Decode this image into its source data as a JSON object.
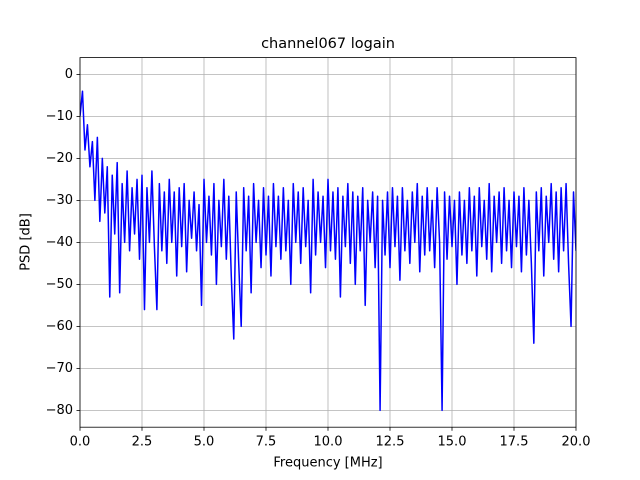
{
  "chart_data": {
    "type": "line",
    "title": "channel067 logain",
    "x_label": "Frequency [MHz]",
    "y_label": "PSD [dB]",
    "xlim": [
      0,
      20
    ],
    "ylim": [
      -84,
      4
    ],
    "grid": true,
    "xticks": [
      {
        "value": 0,
        "label": "0.0"
      },
      {
        "value": 2.5,
        "label": "2.5"
      },
      {
        "value": 5,
        "label": "5.0"
      },
      {
        "value": 7.5,
        "label": "7.5"
      },
      {
        "value": 10,
        "label": "10.0"
      },
      {
        "value": 12.5,
        "label": "12.5"
      },
      {
        "value": 15,
        "label": "15.0"
      },
      {
        "value": 17.5,
        "label": "17.5"
      },
      {
        "value": 20,
        "label": "20.0"
      }
    ],
    "yticks": [
      0,
      {
        "value": -10,
        "label": "−10"
      },
      {
        "value": -20,
        "label": "−20"
      },
      {
        "value": -30,
        "label": "−30"
      },
      {
        "value": -40,
        "label": "−40"
      },
      {
        "value": -50,
        "label": "−50"
      },
      {
        "value": -60,
        "label": "−60"
      },
      {
        "value": -70,
        "label": "−70"
      },
      {
        "value": -80,
        "label": "−80"
      }
    ],
    "x": [
      0,
      0.1,
      0.2,
      0.3,
      0.4,
      0.5,
      0.6,
      0.7,
      0.8,
      0.9,
      1,
      1.1,
      1.2,
      1.3,
      1.4,
      1.5,
      1.6,
      1.7,
      1.8,
      1.9,
      2,
      2.1,
      2.2,
      2.3,
      2.4,
      2.5,
      2.6,
      2.7,
      2.8,
      2.9,
      3,
      3.1,
      3.2,
      3.3,
      3.4,
      3.5,
      3.6,
      3.7,
      3.8,
      3.9,
      4,
      4.1,
      4.2,
      4.3,
      4.4,
      4.5,
      4.6,
      4.7,
      4.8,
      4.9,
      5,
      5.1,
      5.2,
      5.3,
      5.4,
      5.5,
      5.6,
      5.7,
      5.8,
      5.9,
      6,
      6.1,
      6.2,
      6.3,
      6.4,
      6.5,
      6.6,
      6.7,
      6.8,
      6.9,
      7,
      7.1,
      7.2,
      7.3,
      7.4,
      7.5,
      7.6,
      7.7,
      7.8,
      7.9,
      8,
      8.1,
      8.2,
      8.3,
      8.4,
      8.5,
      8.6,
      8.7,
      8.8,
      8.9,
      9,
      9.1,
      9.2,
      9.3,
      9.4,
      9.5,
      9.6,
      9.7,
      9.8,
      9.9,
      10,
      10.1,
      10.2,
      10.3,
      10.4,
      10.5,
      10.6,
      10.7,
      10.8,
      10.9,
      11,
      11.1,
      11.2,
      11.3,
      11.4,
      11.5,
      11.6,
      11.7,
      11.8,
      11.9,
      12,
      12.1,
      12.2,
      12.3,
      12.4,
      12.5,
      12.6,
      12.7,
      12.8,
      12.9,
      13,
      13.1,
      13.2,
      13.3,
      13.4,
      13.5,
      13.6,
      13.7,
      13.8,
      13.9,
      14,
      14.1,
      14.2,
      14.3,
      14.4,
      14.5,
      14.6,
      14.7,
      14.8,
      14.9,
      15,
      15.1,
      15.2,
      15.3,
      15.4,
      15.5,
      15.6,
      15.7,
      15.8,
      15.9,
      16,
      16.1,
      16.2,
      16.3,
      16.4,
      16.5,
      16.6,
      16.7,
      16.8,
      16.9,
      17,
      17.1,
      17.2,
      17.3,
      17.4,
      17.5,
      17.6,
      17.7,
      17.8,
      17.9,
      18,
      18.1,
      18.2,
      18.3,
      18.4,
      18.5,
      18.6,
      18.7,
      18.8,
      18.9,
      19,
      19.1,
      19.2,
      19.3,
      19.4,
      19.5,
      19.6,
      19.7,
      19.8,
      19.9,
      20
    ],
    "series": [
      {
        "color": "#0000ff",
        "values": [
          -10,
          -4,
          -18,
          -12,
          -22,
          -16,
          -30,
          -15,
          -35,
          -20,
          -33,
          -22,
          -53,
          -24,
          -38,
          -21,
          -52,
          -26,
          -40,
          -23,
          -42,
          -27,
          -38,
          -25,
          -44,
          -24,
          -56,
          -27,
          -40,
          -23,
          -41,
          -56,
          -26,
          -42,
          -28,
          -45,
          -25,
          -40,
          -28,
          -48,
          -27,
          -41,
          -26,
          -47,
          -30,
          -39,
          -28,
          -42,
          -31,
          -55,
          -25,
          -40,
          -29,
          -43,
          -26,
          -50,
          -30,
          -41,
          -25,
          -44,
          -29,
          -48,
          -63,
          -28,
          -45,
          -60,
          -27,
          -42,
          -29,
          -52,
          -26,
          -40,
          -30,
          -46,
          -27,
          -43,
          -29,
          -48,
          -26,
          -41,
          -29,
          -44,
          -27,
          -42,
          -30,
          -50,
          -26,
          -40,
          -28,
          -45,
          -27,
          -41,
          -30,
          -52,
          -25,
          -43,
          -28,
          -40,
          -29,
          -46,
          -25,
          -42,
          -28,
          -44,
          -27,
          -53,
          -29,
          -41,
          -26,
          -45,
          -28,
          -50,
          -29,
          -42,
          -27,
          -55,
          -30,
          -40,
          -28,
          -46,
          -29,
          -80,
          -30,
          -43,
          -28,
          -46,
          -27,
          -41,
          -29,
          -49,
          -27,
          -42,
          -30,
          -45,
          -28,
          -40,
          -26,
          -47,
          -29,
          -43,
          -27,
          -42,
          -30,
          -46,
          -27,
          -40,
          -80,
          -28,
          -44,
          -29,
          -41,
          -30,
          -50,
          -28,
          -43,
          -30,
          -45,
          -27,
          -42,
          -29,
          -48,
          -27,
          -41,
          -30,
          -44,
          -26,
          -47,
          -29,
          -40,
          -28,
          -45,
          -27,
          -42,
          -30,
          -46,
          -28,
          -41,
          -29,
          -47,
          -27,
          -43,
          -30,
          -45,
          -64,
          -28,
          -42,
          -27,
          -48,
          -29,
          -40,
          -26,
          -44,
          -28,
          -47,
          -27,
          -42,
          -26,
          -45,
          -60,
          -28,
          -42
        ]
      }
    ]
  }
}
